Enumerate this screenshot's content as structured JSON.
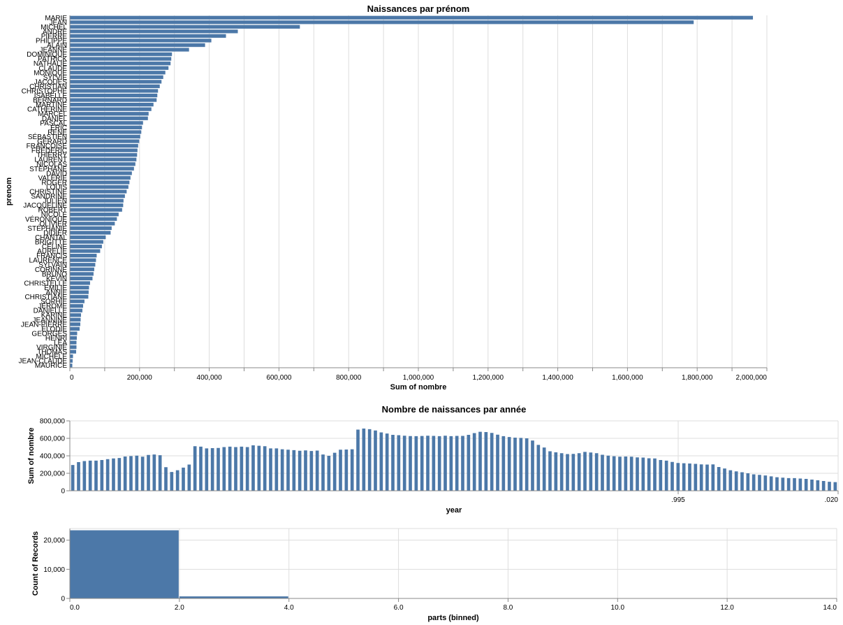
{
  "chart_data": [
    {
      "type": "bar",
      "orientation": "horizontal",
      "title": "Naissances par prénom",
      "xlabel": "Sum of nombre",
      "ylabel": "prenom",
      "xlim": [
        0,
        2000000
      ],
      "xticks": [
        0,
        200000,
        400000,
        600000,
        800000,
        1000000,
        1200000,
        1400000,
        1600000,
        1800000,
        2000000
      ],
      "xtick_labels": [
        "0",
        "200,000",
        "400,000",
        "600,000",
        "800,000",
        "1,000,000",
        "1,200,000",
        "1,400,000",
        "1,600,000",
        "1,800,000",
        "2,000,000"
      ],
      "grid": true,
      "color": "#4c78a8",
      "categories": [
        "MARIE",
        "JEAN",
        "MICHEL",
        "ANDRÉ",
        "PIERRE",
        "PHILIPPE",
        "ALAIN",
        "JEANNE",
        "DOMINIQUE",
        "PATRICK",
        "NATHALIE",
        "CLAUDE",
        "MONIQUE",
        "SYLVIE",
        "JACQUES",
        "CHRISTIAN",
        "CHRISTOPHE",
        "ISABELLE",
        "BERNARD",
        "MARTINE",
        "CATHERINE",
        "MARCEL",
        "DANIEL",
        "PASCAL",
        "ÉRIC",
        "RENÉ",
        "SÉBASTIEN",
        "GÉRARD",
        "FRANÇOISE",
        "FRÉDÉRIC",
        "THIERRY",
        "LAURENT",
        "NICOLAS",
        "STÉPHANE",
        "DAVID",
        "VALÉRIE",
        "ROGER",
        "LOUIS",
        "CHRISTINE",
        "SANDRINE",
        "JULIEN",
        "JACQUELINE",
        "ROBERT",
        "NICOLE",
        "VÉRONIQUE",
        "OLIVIER",
        "STÉPHANIE",
        "DIDIER",
        "CHANTAL",
        "BRIGITTE",
        "CÉLINE",
        "AURÉLIE",
        "FRANCIS",
        "LAURENCE",
        "SYLVAIN",
        "CORINNE",
        "BRUNO",
        "KÉVIN",
        "CHRISTELLE",
        "ÉMILIE",
        "ANNIE",
        "CHRISTIANE",
        "SOPHIE",
        "JÉRÔME",
        "DANIELLE",
        "KARINE",
        "JEANNINE",
        "JEAN-PIERRE",
        "ÉLODIE",
        "GEORGES",
        "HENRI",
        "LÉA",
        "VIRGINIE",
        "THOMAS",
        "MICHÈLE",
        "JEAN-CLAUDE",
        "MAURICE"
      ],
      "values": [
        1960000,
        1790000,
        660000,
        482000,
        448000,
        406000,
        388000,
        342000,
        293000,
        291000,
        289000,
        283000,
        274000,
        268000,
        263000,
        258000,
        253000,
        251000,
        249000,
        240000,
        234000,
        226000,
        224000,
        210000,
        207000,
        205000,
        202000,
        199000,
        196000,
        194000,
        193000,
        191000,
        188000,
        184000,
        178000,
        174000,
        171000,
        168000,
        163000,
        158000,
        154000,
        153000,
        150000,
        140000,
        135000,
        129000,
        120000,
        117000,
        103000,
        96000,
        92000,
        87000,
        77000,
        75000,
        73000,
        70000,
        68000,
        65000,
        58000,
        55000,
        54000,
        53000,
        42000,
        38000,
        36000,
        32000,
        31000,
        30000,
        28000,
        21000,
        20000,
        19000,
        19000,
        18000,
        9000,
        8000,
        7000
      ]
    },
    {
      "type": "bar",
      "title": "Nombre de naissances par année",
      "xlabel": "year",
      "ylabel": "Sum of nombre",
      "ylim": [
        0,
        800000
      ],
      "yticks": [
        0,
        200000,
        400000,
        600000,
        800000
      ],
      "ytick_labels": [
        "0",
        "200,000",
        "400,000",
        "600,000",
        "800,000"
      ],
      "xtick_labels": [
        ".995",
        ".020"
      ],
      "grid": true,
      "color": "#4c78a8",
      "values": [
        295000,
        328000,
        340000,
        345000,
        345000,
        352000,
        362000,
        370000,
        375000,
        392000,
        397000,
        402000,
        390000,
        410000,
        415000,
        407000,
        270000,
        215000,
        235000,
        265000,
        300000,
        510000,
        505000,
        485000,
        488000,
        490000,
        500000,
        505000,
        500000,
        505000,
        500000,
        520000,
        515000,
        510000,
        485000,
        485000,
        475000,
        470000,
        465000,
        458000,
        462000,
        455000,
        460000,
        415000,
        400000,
        435000,
        470000,
        472000,
        475000,
        700000,
        712000,
        705000,
        690000,
        668000,
        655000,
        640000,
        636000,
        630000,
        626000,
        625000,
        627000,
        630000,
        628000,
        625000,
        630000,
        625000,
        628000,
        628000,
        640000,
        660000,
        675000,
        672000,
        662000,
        642000,
        625000,
        615000,
        608000,
        605000,
        600000,
        575000,
        525000,
        495000,
        452000,
        440000,
        430000,
        420000,
        422000,
        430000,
        445000,
        438000,
        430000,
        412000,
        402000,
        395000,
        390000,
        392000,
        390000,
        382000,
        380000,
        372000,
        370000,
        352000,
        345000,
        330000,
        318000,
        315000,
        312000,
        308000,
        302000,
        300000,
        302000,
        272000,
        255000,
        235000,
        222000,
        212000,
        200000,
        188000,
        182000,
        175000,
        165000,
        155000,
        150000,
        145000,
        145000,
        140000,
        136000,
        128000,
        120000,
        112000,
        103000,
        99000
      ]
    },
    {
      "type": "bar",
      "subtype": "histogram",
      "xlabel": "parts (binned)",
      "ylabel": "Count of Records",
      "xlim": [
        0,
        14
      ],
      "ylim": [
        0,
        24000
      ],
      "xticks": [
        0,
        2,
        4,
        6,
        8,
        10,
        12,
        14
      ],
      "xtick_labels": [
        "0.0",
        "2.0",
        "4.0",
        "6.0",
        "8.0",
        "10.0",
        "12.0",
        "14.0"
      ],
      "yticks": [
        0,
        10000,
        20000
      ],
      "ytick_labels": [
        "0",
        "10,000",
        "20,000"
      ],
      "grid": true,
      "color": "#4c78a8",
      "bins": [
        {
          "start": 0,
          "end": 2,
          "count": 23400
        },
        {
          "start": 2,
          "end": 4,
          "count": 700
        }
      ]
    }
  ]
}
